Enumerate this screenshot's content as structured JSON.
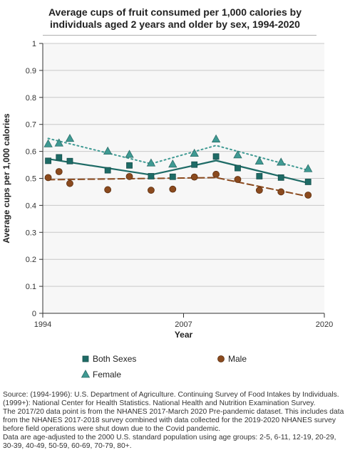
{
  "chart_data": {
    "type": "scatter",
    "title_line1": "Average cups of fruit consumed per 1,000 calories by",
    "title_line2": "individuals aged 2 years and older by sex, 1994-2020",
    "xlabel": "Year",
    "ylabel": "Average cups per 1,000 calories",
    "xlim": [
      1994,
      2020
    ],
    "ylim": [
      0,
      1
    ],
    "x_ticks": [
      "1994",
      "2007",
      "2020"
    ],
    "y_ticks": [
      "0",
      "0.1",
      "0.2",
      "0.3",
      "0.4",
      "0.5",
      "0.6",
      "0.7",
      "0.8",
      "0.9",
      "1"
    ],
    "grid": true,
    "legend_position": "bottom",
    "series": [
      {
        "name": "Both Sexes",
        "marker": "square",
        "color": "#1e6b66",
        "trend_style": "solid",
        "points": [
          {
            "x": 1994.5,
            "y": 0.565
          },
          {
            "x": 1995.5,
            "y": 0.578
          },
          {
            "x": 1996.5,
            "y": 0.564
          },
          {
            "x": 2000,
            "y": 0.53
          },
          {
            "x": 2002,
            "y": 0.548
          },
          {
            "x": 2004,
            "y": 0.508
          },
          {
            "x": 2006,
            "y": 0.506
          },
          {
            "x": 2008,
            "y": 0.551
          },
          {
            "x": 2010,
            "y": 0.581
          },
          {
            "x": 2012,
            "y": 0.538
          },
          {
            "x": 2014,
            "y": 0.508
          },
          {
            "x": 2016,
            "y": 0.503
          },
          {
            "x": 2018.5,
            "y": 0.487
          }
        ],
        "trend": [
          {
            "x": 1994.5,
            "y": 0.572
          },
          {
            "x": 2004,
            "y": 0.513
          },
          {
            "x": 2010,
            "y": 0.566
          },
          {
            "x": 2018.5,
            "y": 0.483
          }
        ]
      },
      {
        "name": "Male",
        "marker": "circle",
        "color": "#8b4a1e",
        "trend_style": "dashed",
        "points": [
          {
            "x": 1994.5,
            "y": 0.503
          },
          {
            "x": 1995.5,
            "y": 0.525
          },
          {
            "x": 1996.5,
            "y": 0.481
          },
          {
            "x": 2000,
            "y": 0.458
          },
          {
            "x": 2002,
            "y": 0.507
          },
          {
            "x": 2004,
            "y": 0.456
          },
          {
            "x": 2006,
            "y": 0.46
          },
          {
            "x": 2008,
            "y": 0.505
          },
          {
            "x": 2010,
            "y": 0.515
          },
          {
            "x": 2012,
            "y": 0.496
          },
          {
            "x": 2014,
            "y": 0.456
          },
          {
            "x": 2016,
            "y": 0.45
          },
          {
            "x": 2018.5,
            "y": 0.438
          }
        ],
        "trend": [
          {
            "x": 1994.5,
            "y": 0.495
          },
          {
            "x": 2010,
            "y": 0.503
          },
          {
            "x": 2018.5,
            "y": 0.433
          }
        ]
      },
      {
        "name": "Female",
        "marker": "triangle",
        "color": "#3f9a93",
        "trend_style": "dotted",
        "points": [
          {
            "x": 1994.5,
            "y": 0.627
          },
          {
            "x": 1995.5,
            "y": 0.63
          },
          {
            "x": 1996.5,
            "y": 0.647
          },
          {
            "x": 2000,
            "y": 0.6
          },
          {
            "x": 2002,
            "y": 0.588
          },
          {
            "x": 2004,
            "y": 0.556
          },
          {
            "x": 2006,
            "y": 0.552
          },
          {
            "x": 2008,
            "y": 0.592
          },
          {
            "x": 2010,
            "y": 0.645
          },
          {
            "x": 2012,
            "y": 0.586
          },
          {
            "x": 2014,
            "y": 0.563
          },
          {
            "x": 2016,
            "y": 0.559
          },
          {
            "x": 2018.5,
            "y": 0.535
          }
        ],
        "trend": [
          {
            "x": 1994.5,
            "y": 0.648
          },
          {
            "x": 2004,
            "y": 0.554
          },
          {
            "x": 2010,
            "y": 0.622
          },
          {
            "x": 2018.5,
            "y": 0.53
          }
        ]
      }
    ]
  },
  "footnote": [
    "Source: (1994-1996): U.S. Department of Agriculture. Continuing Survey of Food Intakes by Individuals. (1999+): National Center for Health Statistics. National Health and Nutrition Examination Survey.",
    "The 2017/20 data point is from the NHANES 2017-March 2020 Pre-pandemic dataset. This includes data from the NHANES 2017-2018 survey combined with data collected for the 2019-2020 NHANES survey before field operations were shut down due to the Covid pandemic.",
    "Data are age-adjusted to the 2000 U.S. standard population using age groups: 2-5, 6-11, 12-19, 20-29, 30-39, 40-49, 50-59, 60-69, 70-79, 80+."
  ]
}
